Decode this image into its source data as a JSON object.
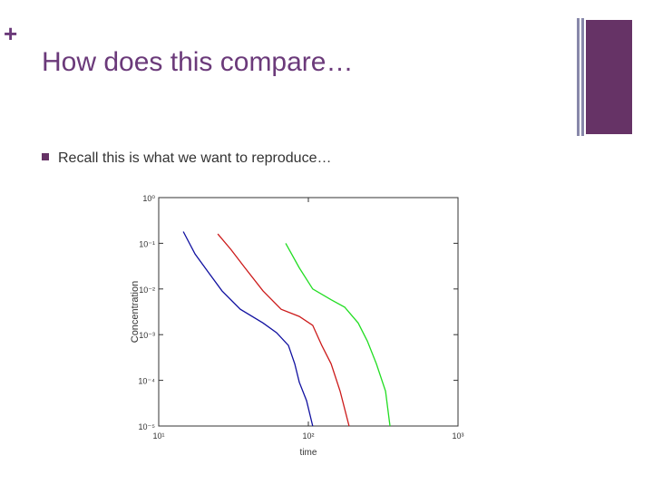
{
  "slide": {
    "title": "How does this compare…",
    "bullet": "Recall this is what we want to reproduce…"
  },
  "chart_data": {
    "type": "line",
    "x_label": "time",
    "y_label": "Concentration",
    "xscale": "log",
    "yscale": "log",
    "xlim": [
      10,
      1000
    ],
    "ylim": [
      1e-05,
      1
    ],
    "xticks": [
      {
        "value": 10,
        "label": "10¹"
      },
      {
        "value": 100,
        "label": "10²"
      },
      {
        "value": 1000,
        "label": "10³"
      }
    ],
    "yticks": [
      {
        "value": 1,
        "label": "10⁰"
      },
      {
        "value": 0.1,
        "label": "10⁻¹"
      },
      {
        "value": 0.01,
        "label": "10⁻²"
      },
      {
        "value": 0.001,
        "label": "10⁻³"
      },
      {
        "value": 0.0001,
        "label": "10⁻⁴"
      },
      {
        "value": 1e-05,
        "label": "10⁻⁵"
      }
    ],
    "series": [
      {
        "color": "#1010a0",
        "x": [
          14.6,
          17.5,
          21.5,
          26.5,
          35.1,
          49.8,
          61.4,
          73.6,
          81.1,
          87.0,
          97.2,
          107
        ],
        "values": [
          0.18,
          0.058,
          0.023,
          0.0091,
          0.0036,
          0.0018,
          0.0011,
          0.00058,
          0.00023,
          9.1e-05,
          3.6e-05,
          1e-05
        ]
      },
      {
        "color": "#cc1a1a",
        "x": [
          24.8,
          30.5,
          37.7,
          49.8,
          65.8,
          87.0,
          107,
          123,
          142,
          163,
          187
        ],
        "values": [
          0.16,
          0.072,
          0.029,
          0.0091,
          0.0036,
          0.0025,
          0.0016,
          0.00058,
          0.00023,
          5.8e-05,
          1e-05
        ]
      },
      {
        "color": "#22dd22",
        "x": [
          70.5,
          87.0,
          107,
          142,
          175,
          215,
          248,
          285,
          328,
          351
        ],
        "values": [
          0.1,
          0.029,
          0.01,
          0.0058,
          0.004,
          0.0018,
          0.00072,
          0.00023,
          5.8e-05,
          1e-05
        ]
      }
    ]
  }
}
